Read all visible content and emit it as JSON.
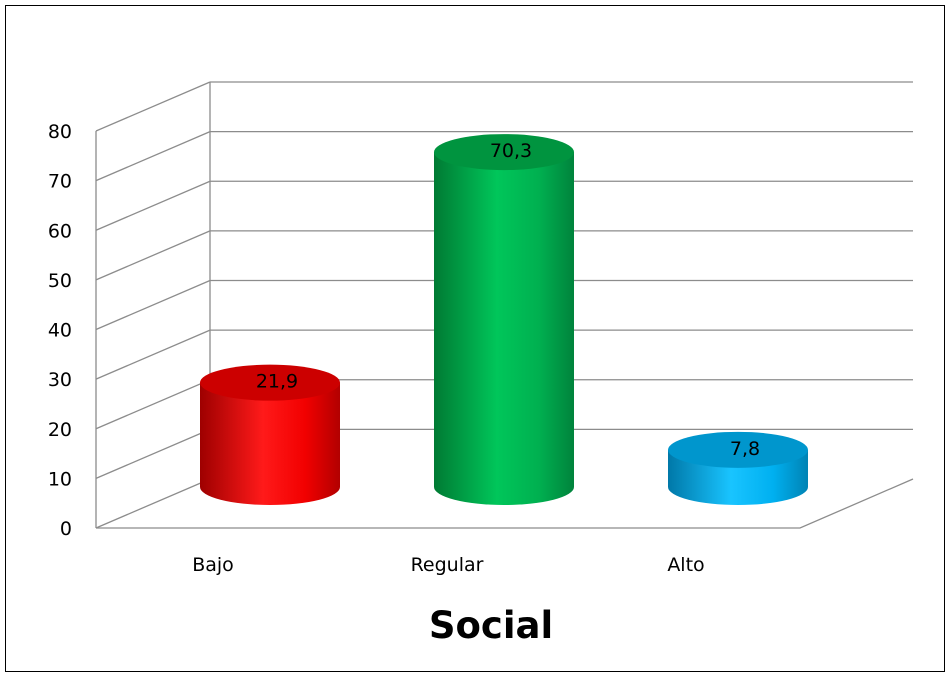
{
  "chart_data": {
    "type": "bar",
    "title": "Social",
    "categories": [
      "Bajo",
      "Regular",
      "Alto"
    ],
    "values": [
      21.9,
      70.3,
      7.8
    ],
    "value_labels": [
      "21,9",
      "70,3",
      "7,8"
    ],
    "ylim": [
      0,
      80
    ],
    "y_ticks": [
      "0",
      "10",
      "20",
      "30",
      "40",
      "50",
      "60",
      "70",
      "80"
    ],
    "grid": true,
    "legend": "none",
    "colors": [
      "#ff0000",
      "#00b050",
      "#00b0f0"
    ],
    "style": "3d-cylinder"
  }
}
